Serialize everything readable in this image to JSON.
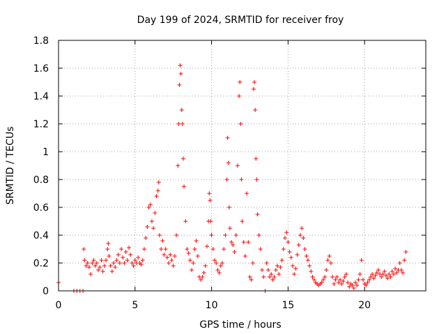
{
  "chart_data": {
    "type": "scatter",
    "title": "Day 199 of 2024, SRMTID for receiver froy",
    "xlabel": "GPS time / hours",
    "ylabel": "SRMTID / TECUs",
    "xlim": [
      0,
      24
    ],
    "ylim": [
      0,
      1.8
    ],
    "xticks": [
      0,
      5,
      10,
      15,
      20
    ],
    "xtick_labels": [
      "0",
      "5",
      "10",
      "15",
      "20"
    ],
    "yticks": [
      0,
      0.2,
      0.4,
      0.6,
      0.8,
      1.0,
      1.2,
      1.4,
      1.6,
      1.8
    ],
    "ytick_labels": [
      "0",
      "0.2",
      "0.4",
      "0.6",
      "0.8",
      "1",
      "1.2",
      "1.4",
      "1.6",
      "1.8"
    ],
    "grid": true,
    "marker": "+",
    "color": "#ff0000",
    "series": [
      {
        "name": "SRMTID",
        "points": [
          [
            0.0,
            0.06
          ],
          [
            1.0,
            0.0
          ],
          [
            1.2,
            0.0
          ],
          [
            1.4,
            0.0
          ],
          [
            1.6,
            0.0
          ],
          [
            1.65,
            0.3
          ],
          [
            1.7,
            0.22
          ],
          [
            1.8,
            0.18
          ],
          [
            1.9,
            0.2
          ],
          [
            2.0,
            0.17
          ],
          [
            2.1,
            0.12
          ],
          [
            2.2,
            0.2
          ],
          [
            2.3,
            0.22
          ],
          [
            2.4,
            0.18
          ],
          [
            2.5,
            0.2
          ],
          [
            2.6,
            0.15
          ],
          [
            2.7,
            0.17
          ],
          [
            2.8,
            0.22
          ],
          [
            2.9,
            0.14
          ],
          [
            3.0,
            0.18
          ],
          [
            3.1,
            0.22
          ],
          [
            3.2,
            0.3
          ],
          [
            3.25,
            0.34
          ],
          [
            3.3,
            0.25
          ],
          [
            3.4,
            0.18
          ],
          [
            3.5,
            0.14
          ],
          [
            3.6,
            0.2
          ],
          [
            3.7,
            0.17
          ],
          [
            3.8,
            0.22
          ],
          [
            3.9,
            0.26
          ],
          [
            4.0,
            0.2
          ],
          [
            4.1,
            0.3
          ],
          [
            4.2,
            0.24
          ],
          [
            4.3,
            0.2
          ],
          [
            4.4,
            0.28
          ],
          [
            4.5,
            0.22
          ],
          [
            4.6,
            0.31
          ],
          [
            4.7,
            0.26
          ],
          [
            4.8,
            0.2
          ],
          [
            4.9,
            0.18
          ],
          [
            5.0,
            0.22
          ],
          [
            5.1,
            0.2
          ],
          [
            5.2,
            0.24
          ],
          [
            5.3,
            0.2
          ],
          [
            5.4,
            0.19
          ],
          [
            5.5,
            0.22
          ],
          [
            5.6,
            0.3
          ],
          [
            5.7,
            0.38
          ],
          [
            5.8,
            0.46
          ],
          [
            5.9,
            0.6
          ],
          [
            6.0,
            0.62
          ],
          [
            6.1,
            0.5
          ],
          [
            6.2,
            0.45
          ],
          [
            6.3,
            0.56
          ],
          [
            6.4,
            0.68
          ],
          [
            6.5,
            0.72
          ],
          [
            6.55,
            0.78
          ],
          [
            6.6,
            0.4
          ],
          [
            6.7,
            0.3
          ],
          [
            6.8,
            0.36
          ],
          [
            6.9,
            0.26
          ],
          [
            7.0,
            0.3
          ],
          [
            7.1,
            0.24
          ],
          [
            7.2,
            0.2
          ],
          [
            7.3,
            0.26
          ],
          [
            7.4,
            0.22
          ],
          [
            7.5,
            0.18
          ],
          [
            7.6,
            0.25
          ],
          [
            7.7,
            0.4
          ],
          [
            7.8,
            0.9
          ],
          [
            7.85,
            1.2
          ],
          [
            7.9,
            1.48
          ],
          [
            7.95,
            1.62
          ],
          [
            8.0,
            1.56
          ],
          [
            8.05,
            1.3
          ],
          [
            8.1,
            1.2
          ],
          [
            8.15,
            0.95
          ],
          [
            8.2,
            0.75
          ],
          [
            8.3,
            0.5
          ],
          [
            8.4,
            0.3
          ],
          [
            8.5,
            0.27
          ],
          [
            8.6,
            0.22
          ],
          [
            8.7,
            0.15
          ],
          [
            8.8,
            0.2
          ],
          [
            8.9,
            0.3
          ],
          [
            9.0,
            0.36
          ],
          [
            9.1,
            0.25
          ],
          [
            9.2,
            0.1
          ],
          [
            9.3,
            0.08
          ],
          [
            9.4,
            0.1
          ],
          [
            9.5,
            0.13
          ],
          [
            9.6,
            0.18
          ],
          [
            9.7,
            0.32
          ],
          [
            9.8,
            0.5
          ],
          [
            9.85,
            0.7
          ],
          [
            9.9,
            0.65
          ],
          [
            9.95,
            0.5
          ],
          [
            10.0,
            0.4
          ],
          [
            10.1,
            0.3
          ],
          [
            10.2,
            0.22
          ],
          [
            10.3,
            0.2
          ],
          [
            10.4,
            0.15
          ],
          [
            10.5,
            0.13
          ],
          [
            10.6,
            0.18
          ],
          [
            10.7,
            0.2
          ],
          [
            10.8,
            0.3
          ],
          [
            10.9,
            0.4
          ],
          [
            11.0,
            0.8
          ],
          [
            11.05,
            1.1
          ],
          [
            11.1,
            0.92
          ],
          [
            11.15,
            0.6
          ],
          [
            11.2,
            0.45
          ],
          [
            11.3,
            0.35
          ],
          [
            11.4,
            0.33
          ],
          [
            11.5,
            0.28
          ],
          [
            11.6,
            0.4
          ],
          [
            11.7,
            0.9
          ],
          [
            11.8,
            1.4
          ],
          [
            11.85,
            1.5
          ],
          [
            11.9,
            1.2
          ],
          [
            11.95,
            0.8
          ],
          [
            12.0,
            0.5
          ],
          [
            12.1,
            0.35
          ],
          [
            12.2,
            0.25
          ],
          [
            12.3,
            0.7
          ],
          [
            12.4,
            0.35
          ],
          [
            12.5,
            0.1
          ],
          [
            12.6,
            0.08
          ],
          [
            12.7,
            0.2
          ],
          [
            12.75,
            1.45
          ],
          [
            12.8,
            1.5
          ],
          [
            12.85,
            1.3
          ],
          [
            12.9,
            0.95
          ],
          [
            12.95,
            0.8
          ],
          [
            13.0,
            0.55
          ],
          [
            13.1,
            0.4
          ],
          [
            13.2,
            0.3
          ],
          [
            13.3,
            0.15
          ],
          [
            13.4,
            0.1
          ],
          [
            13.5,
            0.0
          ],
          [
            13.6,
            0.2
          ],
          [
            13.7,
            0.15
          ],
          [
            13.8,
            0.1
          ],
          [
            13.9,
            0.12
          ],
          [
            14.0,
            0.08
          ],
          [
            14.1,
            0.1
          ],
          [
            14.2,
            0.15
          ],
          [
            14.3,
            0.18
          ],
          [
            14.4,
            0.12
          ],
          [
            14.5,
            0.17
          ],
          [
            14.6,
            0.22
          ],
          [
            14.7,
            0.3
          ],
          [
            14.8,
            0.38
          ],
          [
            14.9,
            0.42
          ],
          [
            15.0,
            0.35
          ],
          [
            15.1,
            0.28
          ],
          [
            15.2,
            0.24
          ],
          [
            15.3,
            0.18
          ],
          [
            15.4,
            0.12
          ],
          [
            15.5,
            0.16
          ],
          [
            15.6,
            0.26
          ],
          [
            15.7,
            0.33
          ],
          [
            15.8,
            0.4
          ],
          [
            15.9,
            0.45
          ],
          [
            16.0,
            0.38
          ],
          [
            16.1,
            0.3
          ],
          [
            16.2,
            0.25
          ],
          [
            16.3,
            0.22
          ],
          [
            16.4,
            0.18
          ],
          [
            16.5,
            0.14
          ],
          [
            16.6,
            0.1
          ],
          [
            16.7,
            0.08
          ],
          [
            16.8,
            0.06
          ],
          [
            16.9,
            0.05
          ],
          [
            17.0,
            0.04
          ],
          [
            17.1,
            0.05
          ],
          [
            17.2,
            0.06
          ],
          [
            17.3,
            0.08
          ],
          [
            17.4,
            0.1
          ],
          [
            17.5,
            0.15
          ],
          [
            17.6,
            0.22
          ],
          [
            17.7,
            0.25
          ],
          [
            17.8,
            0.2
          ],
          [
            17.9,
            0.1
          ],
          [
            18.0,
            0.05
          ],
          [
            18.1,
            0.08
          ],
          [
            18.2,
            0.1
          ],
          [
            18.3,
            0.06
          ],
          [
            18.4,
            0.08
          ],
          [
            18.5,
            0.05
          ],
          [
            18.6,
            0.07
          ],
          [
            18.7,
            0.1
          ],
          [
            18.8,
            0.12
          ],
          [
            18.9,
            0.06
          ],
          [
            19.0,
            0.03
          ],
          [
            19.1,
            0.05
          ],
          [
            19.2,
            0.04
          ],
          [
            19.3,
            0.02
          ],
          [
            19.4,
            0.06
          ],
          [
            19.5,
            0.04
          ],
          [
            19.6,
            0.08
          ],
          [
            19.7,
            0.12
          ],
          [
            19.8,
            0.22
          ],
          [
            19.9,
            0.08
          ],
          [
            20.0,
            0.05
          ],
          [
            20.1,
            0.04
          ],
          [
            20.2,
            0.06
          ],
          [
            20.3,
            0.08
          ],
          [
            20.4,
            0.1
          ],
          [
            20.5,
            0.12
          ],
          [
            20.6,
            0.09
          ],
          [
            20.7,
            0.11
          ],
          [
            20.8,
            0.13
          ],
          [
            20.9,
            0.15
          ],
          [
            21.0,
            0.12
          ],
          [
            21.1,
            0.1
          ],
          [
            21.2,
            0.12
          ],
          [
            21.3,
            0.14
          ],
          [
            21.4,
            0.11
          ],
          [
            21.5,
            0.09
          ],
          [
            21.6,
            0.12
          ],
          [
            21.7,
            0.1
          ],
          [
            21.8,
            0.14
          ],
          [
            21.9,
            0.12
          ],
          [
            22.0,
            0.16
          ],
          [
            22.1,
            0.13
          ],
          [
            22.2,
            0.15
          ],
          [
            22.3,
            0.2
          ],
          [
            22.4,
            0.15
          ],
          [
            22.5,
            0.13
          ],
          [
            22.6,
            0.22
          ],
          [
            22.7,
            0.28
          ]
        ]
      }
    ]
  }
}
